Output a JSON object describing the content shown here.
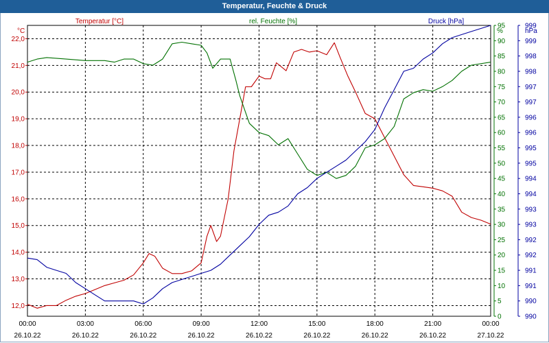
{
  "window": {
    "title": "Temperatur, Feuchte & Druck"
  },
  "colors": {
    "temperature": "#c00000",
    "humidity": "#007000",
    "pressure": "#0000a0",
    "axis_text": "#000000",
    "title_bar": "#1f5e98"
  },
  "chart_data": {
    "type": "line",
    "title": "Temperatur, Feuchte & Druck",
    "x_tick_times": [
      "00:00",
      "03:00",
      "06:00",
      "09:00",
      "12:00",
      "15:00",
      "18:00",
      "21:00",
      "00:00"
    ],
    "x_tick_dates": [
      "26.10.22",
      "26.10.22",
      "26.10.22",
      "26.10.22",
      "26.10.22",
      "26.10.22",
      "26.10.22",
      "26.10.22",
      "27.10.22"
    ],
    "x_range_hours": [
      0,
      24
    ],
    "axes": {
      "temperature": {
        "label": "Temperatur [°C]",
        "unit": "°C",
        "range": [
          11.6,
          22.5
        ],
        "ticks": [
          "12,0",
          "13,0",
          "14,0",
          "15,0",
          "16,0",
          "17,0",
          "18,0",
          "19,0",
          "20,0",
          "21,0",
          "22,0"
        ]
      },
      "humidity": {
        "label": "rel. Feuchte [%]",
        "unit": "%",
        "range": [
          0,
          95
        ],
        "ticks": [
          "0",
          "5",
          "10",
          "15",
          "20",
          "25",
          "30",
          "35",
          "40",
          "45",
          "50",
          "55",
          "60",
          "65",
          "70",
          "75",
          "80",
          "85",
          "90",
          "95"
        ]
      },
      "pressure": {
        "label": "Druck [hPa]",
        "unit": "hPa",
        "ticks": [
          "990",
          "990",
          "991",
          "991",
          "992",
          "992",
          "993",
          "993",
          "994",
          "994",
          "995",
          "995",
          "996",
          "996",
          "997",
          "997",
          "998",
          "998",
          "999",
          "999"
        ]
      }
    },
    "series": [
      {
        "name": "Temperatur [°C]",
        "axis": "temperature",
        "points": [
          [
            0,
            12.05
          ],
          [
            0.5,
            11.9
          ],
          [
            1,
            12.0
          ],
          [
            1.5,
            12.0
          ],
          [
            2,
            12.2
          ],
          [
            2.5,
            12.35
          ],
          [
            3,
            12.45
          ],
          [
            3.5,
            12.6
          ],
          [
            4,
            12.75
          ],
          [
            4.5,
            12.85
          ],
          [
            5,
            12.95
          ],
          [
            5.5,
            13.15
          ],
          [
            6,
            13.6
          ],
          [
            6.3,
            13.95
          ],
          [
            6.6,
            13.85
          ],
          [
            7,
            13.4
          ],
          [
            7.5,
            13.2
          ],
          [
            8,
            13.2
          ],
          [
            8.5,
            13.3
          ],
          [
            9,
            13.6
          ],
          [
            9.3,
            14.6
          ],
          [
            9.5,
            15.0
          ],
          [
            9.8,
            14.4
          ],
          [
            10,
            14.6
          ],
          [
            10.4,
            16.0
          ],
          [
            10.7,
            17.8
          ],
          [
            11,
            19.0
          ],
          [
            11.3,
            20.2
          ],
          [
            11.6,
            20.2
          ],
          [
            12,
            20.6
          ],
          [
            12.3,
            20.5
          ],
          [
            12.6,
            20.5
          ],
          [
            12.9,
            21.1
          ],
          [
            13.4,
            20.8
          ],
          [
            13.8,
            21.5
          ],
          [
            14.2,
            21.6
          ],
          [
            14.6,
            21.5
          ],
          [
            15,
            21.55
          ],
          [
            15.5,
            21.4
          ],
          [
            15.9,
            21.85
          ],
          [
            16.2,
            21.3
          ],
          [
            16.6,
            20.6
          ],
          [
            17,
            20.0
          ],
          [
            17.5,
            19.2
          ],
          [
            18,
            19.0
          ],
          [
            18.5,
            18.3
          ],
          [
            19,
            17.6
          ],
          [
            19.5,
            16.9
          ],
          [
            20,
            16.5
          ],
          [
            20.5,
            16.45
          ],
          [
            21,
            16.4
          ],
          [
            21.5,
            16.3
          ],
          [
            22,
            16.1
          ],
          [
            22.5,
            15.5
          ],
          [
            23,
            15.3
          ],
          [
            23.5,
            15.2
          ],
          [
            24,
            15.05
          ]
        ]
      },
      {
        "name": "rel. Feuchte [%]",
        "axis": "humidity",
        "points": [
          [
            0,
            83
          ],
          [
            0.5,
            84
          ],
          [
            1,
            84.5
          ],
          [
            2,
            84
          ],
          [
            3,
            83.5
          ],
          [
            4,
            83.5
          ],
          [
            4.5,
            83
          ],
          [
            5,
            84
          ],
          [
            5.5,
            84
          ],
          [
            6,
            82.5
          ],
          [
            6.5,
            82
          ],
          [
            7,
            84
          ],
          [
            7.5,
            89
          ],
          [
            8,
            89.5
          ],
          [
            8.5,
            89
          ],
          [
            9,
            88.5
          ],
          [
            9.3,
            86
          ],
          [
            9.6,
            81
          ],
          [
            10,
            84
          ],
          [
            10.5,
            84
          ],
          [
            10.8,
            77
          ],
          [
            11,
            72
          ],
          [
            11.5,
            63
          ],
          [
            12,
            60
          ],
          [
            12.5,
            59
          ],
          [
            13,
            56
          ],
          [
            13.5,
            58
          ],
          [
            14,
            53
          ],
          [
            14.5,
            48
          ],
          [
            15,
            46
          ],
          [
            15.5,
            47
          ],
          [
            16,
            45
          ],
          [
            16.5,
            46
          ],
          [
            17,
            49
          ],
          [
            17.5,
            55
          ],
          [
            18,
            56
          ],
          [
            18.5,
            58
          ],
          [
            19,
            62
          ],
          [
            19.5,
            71
          ],
          [
            20,
            73
          ],
          [
            20.5,
            74
          ],
          [
            21,
            73.5
          ],
          [
            21.5,
            75
          ],
          [
            22,
            77
          ],
          [
            22.5,
            80
          ],
          [
            23,
            82
          ],
          [
            24,
            83
          ]
        ]
      },
      {
        "name": "Druck [hPa]",
        "axis": "humidity",
        "points": [
          [
            0,
            19
          ],
          [
            0.5,
            18.5
          ],
          [
            1,
            16
          ],
          [
            1.5,
            15
          ],
          [
            2,
            14
          ],
          [
            2.5,
            11
          ],
          [
            3,
            9
          ],
          [
            3.5,
            7
          ],
          [
            4,
            5
          ],
          [
            4.5,
            5
          ],
          [
            5,
            5
          ],
          [
            5.5,
            5
          ],
          [
            6,
            4
          ],
          [
            6.5,
            6
          ],
          [
            7,
            9
          ],
          [
            7.5,
            11
          ],
          [
            8,
            12
          ],
          [
            8.5,
            13
          ],
          [
            9,
            14
          ],
          [
            9.5,
            15
          ],
          [
            10,
            17
          ],
          [
            10.5,
            20
          ],
          [
            11,
            23
          ],
          [
            11.5,
            26
          ],
          [
            12,
            30
          ],
          [
            12.5,
            33
          ],
          [
            13,
            34
          ],
          [
            13.5,
            36
          ],
          [
            14,
            40
          ],
          [
            14.5,
            42
          ],
          [
            15,
            45
          ],
          [
            15.5,
            47
          ],
          [
            16,
            49
          ],
          [
            16.5,
            51
          ],
          [
            17,
            54
          ],
          [
            17.5,
            57
          ],
          [
            18,
            61
          ],
          [
            18.5,
            68
          ],
          [
            19,
            74
          ],
          [
            19.5,
            80
          ],
          [
            20,
            81
          ],
          [
            20.5,
            84
          ],
          [
            21,
            86
          ],
          [
            21.5,
            89
          ],
          [
            22,
            91
          ],
          [
            22.5,
            92
          ],
          [
            23,
            93
          ],
          [
            24,
            95
          ]
        ]
      }
    ]
  }
}
